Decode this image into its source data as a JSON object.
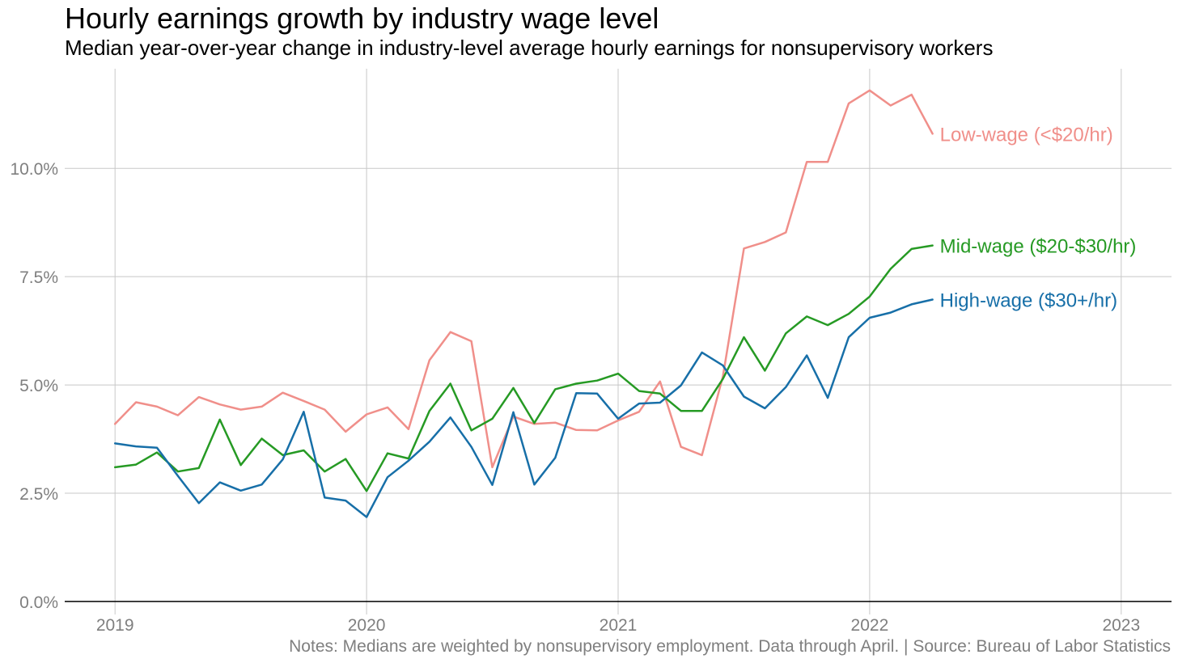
{
  "chart_data": {
    "type": "line",
    "title": "Hourly earnings growth by industry wage level",
    "subtitle": "Median year-over-year change in industry-level average hourly earnings for nonsupervisory workers",
    "note": "Notes: Medians are weighted by nonsupervisory employment. Data through April. | Source: Bureau of Labor Statistics",
    "xlabel": "",
    "ylabel": "",
    "xlim": [
      2018.8,
      2023.2
    ],
    "ylim": [
      -0.3,
      12.3
    ],
    "x_ticks": [
      {
        "value": 2019,
        "label": "2019"
      },
      {
        "value": 2020,
        "label": "2020"
      },
      {
        "value": 2021,
        "label": "2021"
      },
      {
        "value": 2022,
        "label": "2022"
      },
      {
        "value": 2023,
        "label": "2023"
      }
    ],
    "y_ticks": [
      {
        "value": 0,
        "label": "0.0%"
      },
      {
        "value": 2.5,
        "label": "2.5%"
      },
      {
        "value": 5,
        "label": "5.0%"
      },
      {
        "value": 7.5,
        "label": "7.5%"
      },
      {
        "value": 10,
        "label": "10.0%"
      }
    ],
    "grid": true,
    "legend": "direct labels at line ends",
    "x": [
      "2019-01",
      "2019-02",
      "2019-03",
      "2019-04",
      "2019-05",
      "2019-06",
      "2019-07",
      "2019-08",
      "2019-09",
      "2019-10",
      "2019-11",
      "2019-12",
      "2020-01",
      "2020-02",
      "2020-03",
      "2020-04",
      "2020-05",
      "2020-06",
      "2020-07",
      "2020-08",
      "2020-09",
      "2020-10",
      "2020-11",
      "2020-12",
      "2021-01",
      "2021-02",
      "2021-03",
      "2021-04",
      "2021-05",
      "2021-06",
      "2021-07",
      "2021-08",
      "2021-09",
      "2021-10",
      "2021-11",
      "2021-12",
      "2022-01",
      "2022-02",
      "2022-03",
      "2022-04"
    ],
    "series": [
      {
        "name": "Low-wage (<$20/hr)",
        "color": "#f08f8a",
        "values": [
          4.1,
          4.6,
          4.5,
          4.3,
          4.72,
          4.55,
          4.43,
          4.5,
          4.82,
          4.63,
          4.43,
          3.92,
          4.32,
          4.48,
          3.98,
          5.57,
          6.22,
          6.01,
          3.1,
          4.27,
          4.1,
          4.13,
          3.96,
          3.95,
          4.18,
          4.38,
          5.08,
          3.57,
          3.38,
          5.2,
          8.15,
          8.3,
          8.52,
          10.15,
          10.15,
          11.5,
          11.8,
          11.45,
          11.7,
          10.8
        ]
      },
      {
        "name": "Mid-wage ($20-$30/hr)",
        "color": "#269a24",
        "values": [
          3.1,
          3.16,
          3.44,
          3.0,
          3.08,
          4.2,
          3.15,
          3.76,
          3.38,
          3.49,
          3.0,
          3.29,
          2.55,
          3.42,
          3.3,
          4.4,
          5.03,
          3.95,
          4.22,
          4.93,
          4.12,
          4.9,
          5.03,
          5.1,
          5.26,
          4.86,
          4.8,
          4.4,
          4.4,
          5.14,
          6.1,
          5.33,
          6.19,
          6.58,
          6.38,
          6.64,
          7.04,
          7.68,
          8.14,
          8.22
        ]
      },
      {
        "name": "High-wage ($30+/hr)",
        "color": "#176fa8",
        "values": [
          3.65,
          3.58,
          3.55,
          2.9,
          2.27,
          2.75,
          2.56,
          2.7,
          3.28,
          4.38,
          2.4,
          2.33,
          1.95,
          2.87,
          3.25,
          3.69,
          4.25,
          3.57,
          2.69,
          4.37,
          2.7,
          3.32,
          4.81,
          4.8,
          4.22,
          4.57,
          4.59,
          4.99,
          5.75,
          5.45,
          4.73,
          4.46,
          4.95,
          5.68,
          4.7,
          6.1,
          6.55,
          6.67,
          6.86,
          6.97
        ]
      }
    ]
  }
}
